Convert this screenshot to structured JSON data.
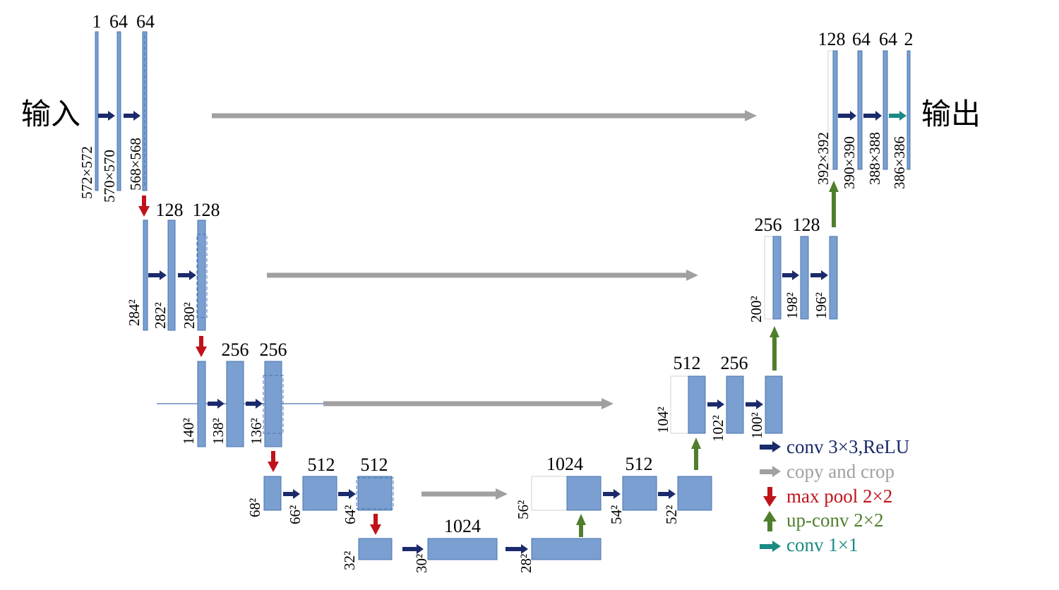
{
  "labels": {
    "input": "输入",
    "output": "输出"
  },
  "legend": [
    {
      "text": "conv 3×3,ReLU",
      "color": "#1b2a6b",
      "icon": "right-arrow"
    },
    {
      "text": "copy and crop",
      "color": "#a0a0a0",
      "icon": "right-arrow"
    },
    {
      "text": "max pool 2×2",
      "color": "#c0121a",
      "icon": "down-arrow"
    },
    {
      "text": "up-conv 2×2",
      "color": "#4f7f2c",
      "icon": "up-arrow"
    },
    {
      "text": "conv 1×1",
      "color": "#1a8a82",
      "icon": "right-arrow"
    }
  ],
  "colors": {
    "block": "#7a9fd0",
    "block_border": "#4a74b0",
    "conv": "#1b2a6b",
    "copy": "#a0a0a0",
    "pool": "#c0121a",
    "upconv": "#4f7f2c",
    "conv1x1": "#1a8a82"
  },
  "channel_labels": [
    "1",
    "64",
    "64",
    "128",
    "128",
    "256",
    "256",
    "512",
    "512",
    "1024",
    "1024",
    "512",
    "512",
    "256",
    "256",
    "128",
    "128",
    "64",
    "64",
    "2"
  ],
  "size_labels": [
    "572×572",
    "570×570",
    "568×568",
    "284²",
    "282²",
    "280²",
    "140²",
    "138²",
    "136²",
    "68²",
    "66²",
    "64²",
    "32²",
    "30²",
    "28²",
    "56²",
    "54²",
    "52²",
    "104²",
    "102²",
    "100²",
    "200²",
    "198²",
    "196²",
    "392×392",
    "390×390",
    "388×388",
    "386×386"
  ]
}
